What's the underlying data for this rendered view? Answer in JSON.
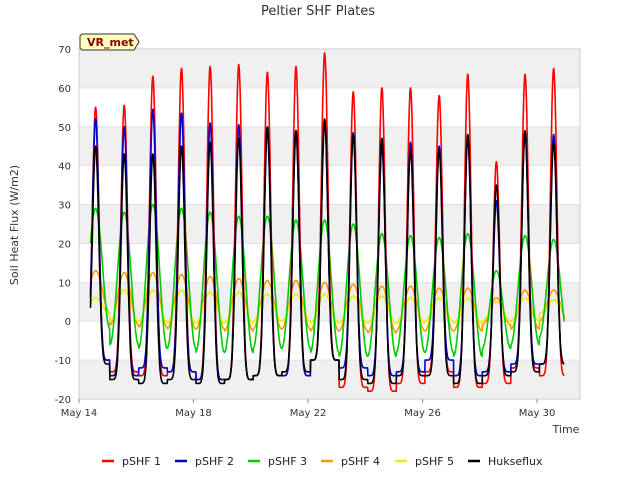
{
  "chart_data": {
    "type": "line",
    "title": "Peltier SHF Plates",
    "xlabel": "Time",
    "ylabel": "Soil Heat Flux (W/m2)",
    "station_label": "VR_met",
    "xlim": [
      0,
      17.5
    ],
    "ylim": [
      -20,
      70
    ],
    "x_units": "days since May 14 00:00",
    "y_ticks": [
      -20,
      -10,
      0,
      10,
      20,
      30,
      40,
      50,
      60,
      70
    ],
    "x_ticks": [
      {
        "x": 0,
        "label": "May 14"
      },
      {
        "x": 4,
        "label": "May 18"
      },
      {
        "x": 8,
        "label": "May 22"
      },
      {
        "x": 12,
        "label": "May 26"
      },
      {
        "x": 16,
        "label": "May 30"
      }
    ],
    "day_peak_offset": 0.58,
    "n_days": 17,
    "series": [
      {
        "name": "pSHF 1",
        "color": "#ff0000",
        "shape": "peaky",
        "peaks": [
          55,
          55.5,
          63,
          65,
          65.5,
          66,
          64,
          65.5,
          69,
          59,
          60,
          60,
          58,
          63.5,
          41,
          63.5,
          65
        ],
        "troughs": [
          -10,
          -13,
          -14,
          -13,
          -15,
          -15,
          -14,
          -14,
          -10,
          -17,
          -18,
          -16,
          -13,
          -17,
          -16,
          -12,
          -14
        ]
      },
      {
        "name": "pSHF 2",
        "color": "#0000cc",
        "shape": "peaky",
        "peaks": [
          52,
          50,
          54.5,
          53.5,
          51,
          50.5,
          49,
          49,
          51,
          48.5,
          45,
          46,
          45,
          47,
          31,
          48.5,
          48
        ],
        "troughs": [
          -10,
          -14,
          -12,
          -13,
          -15,
          -15,
          -14,
          -14,
          -10,
          -12,
          -14,
          -13,
          -10,
          -14,
          -13,
          -11,
          -11
        ]
      },
      {
        "name": "pSHF 3",
        "color": "#00cc00",
        "shape": "smooth",
        "peaks": [
          29,
          28,
          30,
          29,
          28,
          27,
          27,
          26,
          26,
          25,
          22.5,
          22,
          21.5,
          22.5,
          13,
          22,
          21
        ],
        "troughs": [
          -2,
          -6,
          -7,
          -7,
          -8,
          -8,
          -7,
          -7,
          -8,
          -9,
          -9,
          -8,
          -8,
          -9,
          -7,
          -6,
          -4
        ]
      },
      {
        "name": "pSHF 4",
        "color": "#ff9900",
        "shape": "smooth",
        "peaks": [
          13,
          12.5,
          12.5,
          12,
          11.5,
          11,
          10.5,
          10.5,
          10,
          9.5,
          9,
          9,
          8.5,
          8.5,
          6,
          8,
          8
        ],
        "troughs": [
          2,
          -1,
          -1.5,
          -2,
          -2,
          -2.5,
          -2,
          -2,
          -2.5,
          -2.5,
          -3,
          -2.5,
          -2.5,
          -2.5,
          -1,
          -2,
          0
        ]
      },
      {
        "name": "pSHF 5",
        "color": "#eeee00",
        "shape": "smooth",
        "peaks": [
          6,
          8,
          8,
          8,
          7.5,
          7.5,
          7,
          7,
          7,
          6.5,
          6.5,
          6,
          6,
          6,
          5,
          6,
          5.5
        ],
        "troughs": [
          2,
          0,
          0,
          -0.5,
          -0.5,
          -0.5,
          0,
          0,
          -0.5,
          -0.5,
          -0.5,
          -0.5,
          0,
          -0.5,
          0,
          0,
          2
        ]
      },
      {
        "name": "Hukseflux",
        "color": "#000000",
        "shape": "peaky",
        "peaks": [
          45,
          43,
          43,
          45,
          46,
          47,
          50,
          49,
          52,
          48,
          47,
          44,
          44,
          48,
          35,
          49,
          46
        ],
        "troughs": [
          -11,
          -15,
          -16,
          -15,
          -16,
          -15,
          -14,
          -13,
          -10,
          -15,
          -16,
          -14,
          -14,
          -16,
          -14,
          -13,
          -11
        ]
      }
    ]
  }
}
